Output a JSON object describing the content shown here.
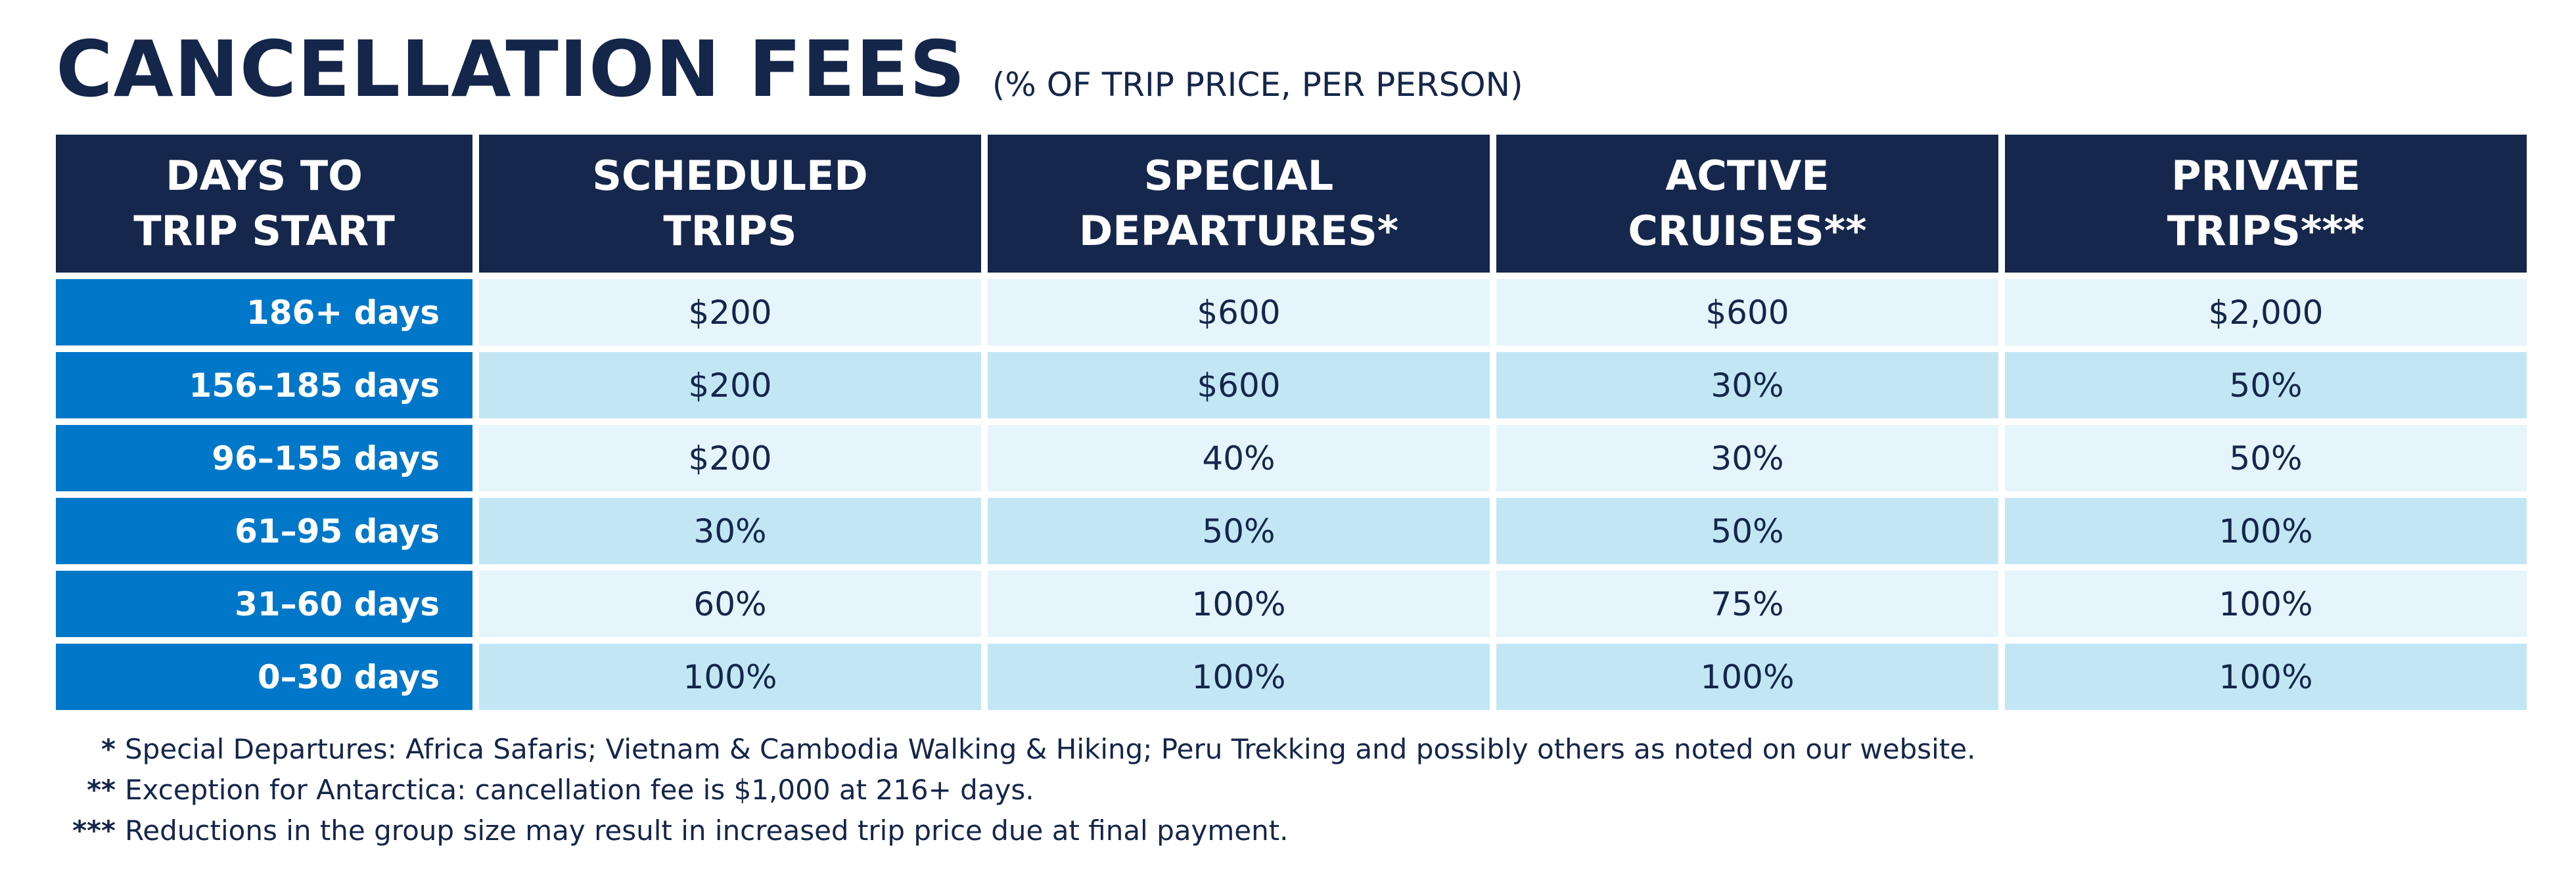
{
  "title": "CANCELLATION FEES",
  "subtitle": "(% OF TRIP PRICE, PER PERSON)",
  "table": {
    "headers": [
      {
        "line1": "DAYS TO",
        "line2": "TRIP START"
      },
      {
        "line1": "SCHEDULED",
        "line2": "TRIPS"
      },
      {
        "line1": "SPECIAL",
        "line2": "DEPARTURES*"
      },
      {
        "line1": "ACTIVE",
        "line2": "CRUISES**"
      },
      {
        "line1": "PRIVATE",
        "line2": "TRIPS***"
      }
    ],
    "rows": [
      {
        "days": "186+ days",
        "scheduled": "$200",
        "special": "$600",
        "active": "$600",
        "private": "$2,000"
      },
      {
        "days": "156–185 days",
        "scheduled": "$200",
        "special": "$600",
        "active": "30%",
        "private": "50%"
      },
      {
        "days": "96–155 days",
        "scheduled": "$200",
        "special": "40%",
        "active": "30%",
        "private": "50%"
      },
      {
        "days": "61–95 days",
        "scheduled": "30%",
        "special": "50%",
        "active": "50%",
        "private": "100%"
      },
      {
        "days": "31–60 days",
        "scheduled": "60%",
        "special": "100%",
        "active": "75%",
        "private": "100%"
      },
      {
        "days": "0–30 days",
        "scheduled": "100%",
        "special": "100%",
        "active": "100%",
        "private": "100%"
      }
    ]
  },
  "footnotes": [
    {
      "mark": "*",
      "text": "Special Departures: Africa Safaris; Vietnam & Cambodia Walking & Hiking; Peru Trekking and possibly others as noted on our website."
    },
    {
      "mark": "**",
      "text": "Exception for Antarctica: cancellation fee is $1,000 at 216+ days."
    },
    {
      "mark": "***",
      "text": "Reductions in the group size may result in increased trip price due at final payment."
    }
  ],
  "colors": {
    "navy": "#15274d",
    "blue": "#0077c8",
    "light_row": "#e6f4fb",
    "dark_row": "#c3e6f5"
  }
}
